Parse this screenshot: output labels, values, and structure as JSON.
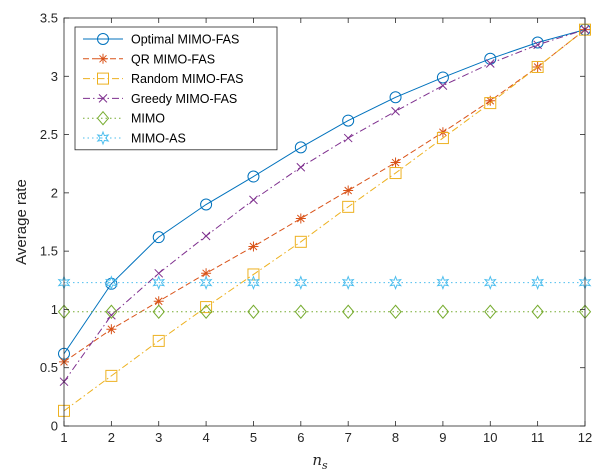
{
  "chart_data": {
    "type": "line",
    "xlabel": "n",
    "xlabel_sub": "s",
    "ylabel": "Average rate",
    "xlim": [
      1,
      12
    ],
    "ylim": [
      0,
      3.5
    ],
    "xticks": [
      1,
      2,
      3,
      4,
      5,
      6,
      7,
      8,
      9,
      10,
      11,
      12
    ],
    "yticks": [
      0,
      0.5,
      1,
      1.5,
      2,
      2.5,
      3,
      3.5
    ],
    "ytick_labels": [
      "0",
      "0.5",
      "1",
      "1.5",
      "2",
      "2.5",
      "3",
      "3.5"
    ],
    "grid": false,
    "legend_position": "top-left",
    "x": [
      1,
      2,
      3,
      4,
      5,
      6,
      7,
      8,
      9,
      10,
      11,
      12
    ],
    "series": [
      {
        "name": "Optimal MIMO-FAS",
        "color": "#0072BD",
        "dash": "solid",
        "marker": "circle",
        "values": [
          0.62,
          1.22,
          1.62,
          1.9,
          2.14,
          2.39,
          2.62,
          2.82,
          2.99,
          3.15,
          3.29,
          3.4
        ]
      },
      {
        "name": "QR MIMO-FAS",
        "color": "#D95319",
        "dash": "dashed",
        "marker": "asterisk",
        "values": [
          0.55,
          0.83,
          1.07,
          1.31,
          1.54,
          1.78,
          2.02,
          2.26,
          2.52,
          2.79,
          3.08,
          3.4
        ]
      },
      {
        "name": "Random MIMO-FAS",
        "color": "#EDB120",
        "dash": "dashdot",
        "marker": "square",
        "values": [
          0.13,
          0.43,
          0.73,
          1.02,
          1.3,
          1.58,
          1.88,
          2.17,
          2.47,
          2.77,
          3.08,
          3.4
        ]
      },
      {
        "name": "Greedy MIMO-FAS",
        "color": "#7E2F8E",
        "dash": "dashdot",
        "marker": "x",
        "values": [
          0.38,
          0.95,
          1.31,
          1.63,
          1.94,
          2.22,
          2.47,
          2.7,
          2.92,
          3.11,
          3.27,
          3.4
        ]
      },
      {
        "name": "MIMO",
        "color": "#77AC30",
        "dash": "dotted",
        "marker": "diamond",
        "values": [
          0.98,
          0.98,
          0.98,
          0.98,
          0.98,
          0.98,
          0.98,
          0.98,
          0.98,
          0.98,
          0.98,
          0.98
        ]
      },
      {
        "name": "MIMO-AS",
        "color": "#4DBEEE",
        "dash": "dotted",
        "marker": "hexagram",
        "values": [
          1.23,
          1.23,
          1.23,
          1.23,
          1.23,
          1.23,
          1.23,
          1.23,
          1.23,
          1.23,
          1.23,
          1.23
        ]
      }
    ]
  }
}
